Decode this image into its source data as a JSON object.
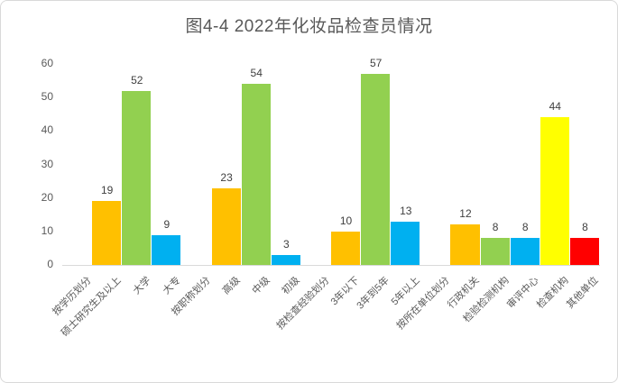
{
  "chart_data": {
    "type": "bar",
    "title": "图4-4 2022年化妆品检查员情况",
    "xlabel": "",
    "ylabel": "",
    "ylim": [
      0,
      60
    ],
    "yticks": [
      0,
      10,
      20,
      30,
      40,
      50,
      60
    ],
    "grid": false,
    "legend": null,
    "data_labels_shown": true,
    "categories": [
      "按学历划分",
      "硕士研究生及以上",
      "大学",
      "大专",
      "按职称划分",
      "高级",
      "中级",
      "初级",
      "按检查经验划分",
      "3年以下",
      "3年到5年",
      "5年以上",
      "按所在单位划分",
      "行政机关",
      "检验检测机构",
      "审评中心",
      "检查机构",
      "其他单位"
    ],
    "values": [
      null,
      19,
      52,
      9,
      null,
      23,
      54,
      3,
      null,
      10,
      57,
      13,
      null,
      12,
      8,
      8,
      44,
      8
    ],
    "colors": [
      null,
      "#FFC000",
      "#92D050",
      "#00B0F0",
      null,
      "#FFC000",
      "#92D050",
      "#00B0F0",
      null,
      "#FFC000",
      "#92D050",
      "#00B0F0",
      null,
      "#FFC000",
      "#92D050",
      "#00B0F0",
      "#FFFF00",
      "#FF0000"
    ],
    "title_color": "#595959",
    "tick_label_color": "#595959",
    "data_label_color": "#404040",
    "axis_line_color": "#d9d9d9",
    "border_color": "#d9d9d9",
    "background_color": "#ffffff"
  }
}
